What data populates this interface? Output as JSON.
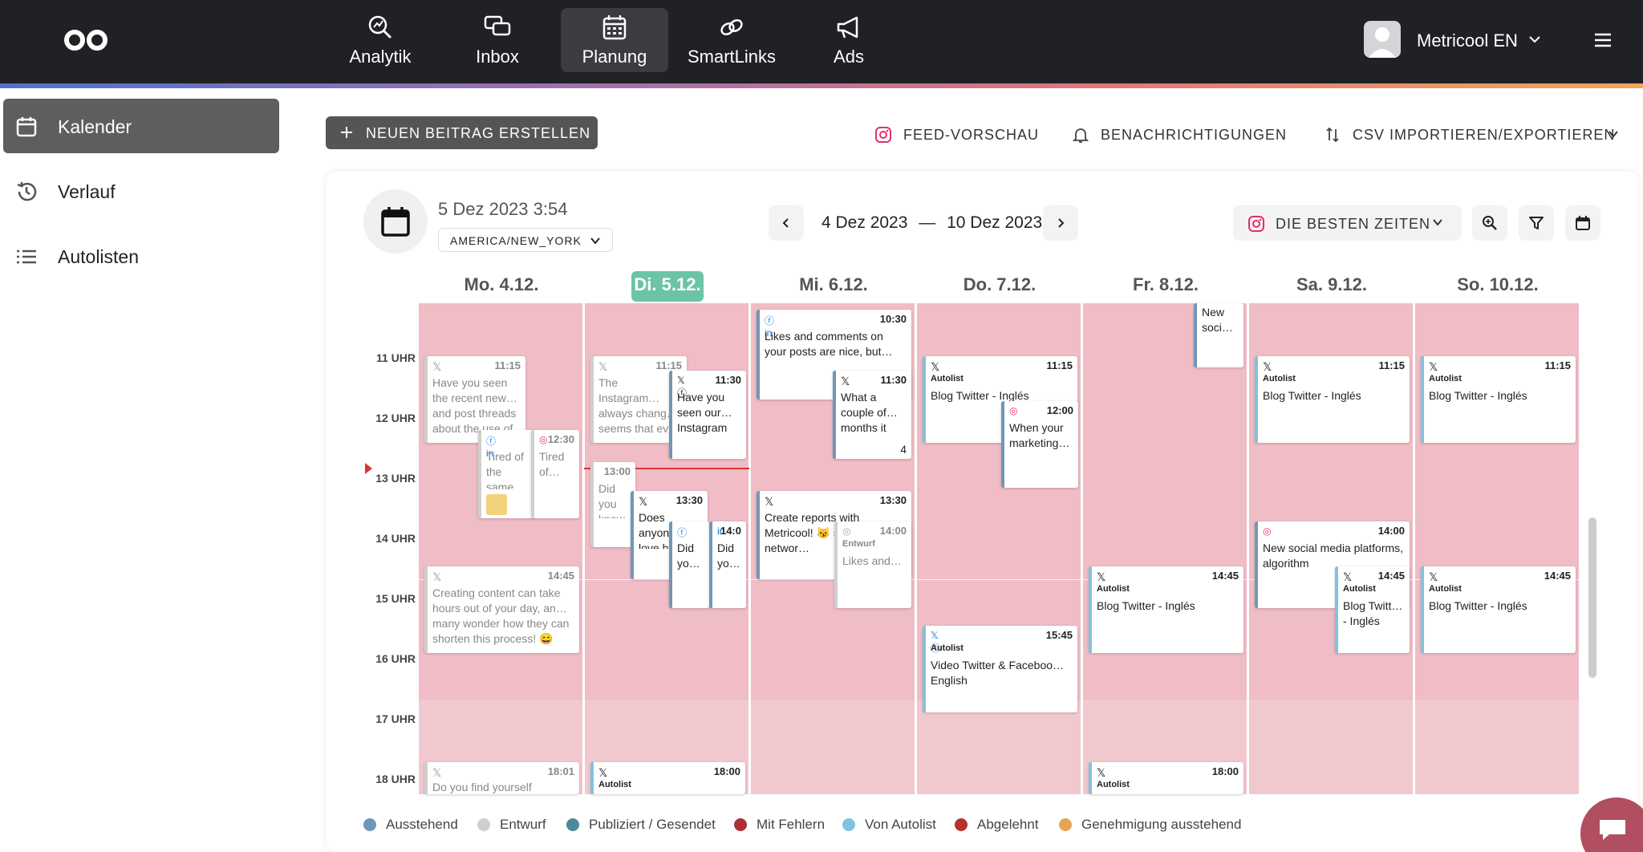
{
  "nav": {
    "items": [
      {
        "label": "Analytik",
        "icon": "analytics-icon"
      },
      {
        "label": "Inbox",
        "icon": "inbox-icon"
      },
      {
        "label": "Planung",
        "icon": "calendar-icon",
        "active": true
      },
      {
        "label": "SmartLinks",
        "icon": "link-icon"
      },
      {
        "label": "Ads",
        "icon": "megaphone-icon"
      }
    ],
    "account": "Metricool EN"
  },
  "sidebar": {
    "items": [
      {
        "label": "Kalender",
        "icon": "calendar-icon",
        "active": true
      },
      {
        "label": "Verlauf",
        "icon": "history-icon"
      },
      {
        "label": "Autolisten",
        "icon": "list-icon"
      }
    ]
  },
  "toolbar": {
    "new_post": "NEUEN BEITRAG ERSTELLEN",
    "feed_preview": "FEED-VORSCHAU",
    "notifications": "BENACHRICHTIGUNGEN",
    "csv": "CSV IMPORTIEREN/EXPORTIEREN"
  },
  "calendar": {
    "datetime": "5 Dez 2023 3:54",
    "timezone": "AMERICA/NEW_YORK",
    "range_start": "4 Dez 2023",
    "range_sep": "—",
    "range_end": "10 Dez 2023",
    "best_times": "DIE BESTEN ZEITEN",
    "days": [
      "Mo. 4.12.",
      "Di. 5.12.",
      "Mi. 6.12.",
      "Do. 7.12.",
      "Fr. 8.12.",
      "Sa. 9.12.",
      "So. 10.12."
    ],
    "today_index": 1,
    "hours": [
      "11 UHR",
      "12 UHR",
      "13 UHR",
      "14 UHR",
      "15 UHR",
      "16 UHR",
      "17 UHR",
      "18 UHR"
    ]
  },
  "posts": {
    "mo_1115": {
      "time": "11:15",
      "text": "Have you seen the recent new… and post threads about the use of"
    },
    "mo_1230a": {
      "text": "Tired of the same…"
    },
    "mo_1230b": {
      "time": "12:30",
      "text": "Tired of…"
    },
    "mo_1445": {
      "time": "14:45",
      "text": "Creating content can take hours out of your day, an… many wonder how they can shorten this process! 😄"
    },
    "mo_1801": {
      "time": "18:01",
      "text": "Do you find yourself"
    },
    "di_1115": {
      "time": "11:15",
      "text": "The Instagram… always chang… seems that ev… trying to keep"
    },
    "di_1130": {
      "time": "11:30",
      "text": "Have you seen our… Instagram"
    },
    "di_1300": {
      "time": "13:00",
      "text": "Did you know"
    },
    "di_1330": {
      "time": "13:30",
      "text": "Does anyon… love h…"
    },
    "di_1400a": {
      "text": "Did yo… know"
    },
    "di_1400b": {
      "time": "14:0",
      "text": "Did yo…"
    },
    "di_1800": {
      "time": "18:00",
      "autolist": "Autolist"
    },
    "mi_1030": {
      "time": "10:30",
      "text": "Likes and comments on your posts are nice, but… how do you know if your"
    },
    "mi_1130": {
      "time": "11:30",
      "text": "What a couple of… months it",
      "count": "4"
    },
    "mi_1330": {
      "time": "13:30",
      "text": "Create reports with Metricool! 😼 social networ…"
    },
    "mi_1400": {
      "time": "14:00",
      "draft": "Entwurf",
      "text": "Likes and… comments"
    },
    "do_1115": {
      "time": "11:15",
      "autolist": "Autolist",
      "text": "Blog Twitter - Inglés"
    },
    "do_1200": {
      "time": "12:00",
      "text": "When your marketing…"
    },
    "do_1545": {
      "time": "15:45",
      "autolist": "Autolist",
      "text": "Video Twitter & Faceboo… English"
    },
    "fr_top": {
      "text": "New soci…"
    },
    "fr_1445": {
      "time": "14:45",
      "autolist": "Autolist",
      "text": "Blog Twitter - Inglés"
    },
    "fr_1800": {
      "time": "18:00",
      "autolist": "Autolist"
    },
    "sa_1115": {
      "time": "11:15",
      "autolist": "Autolist",
      "text": "Blog Twitter - Inglés"
    },
    "sa_1400": {
      "time": "14:00",
      "text": "New social media platforms, algorithm"
    },
    "sa_1445": {
      "time": "14:45",
      "autolist": "Autolist",
      "text": "Blog Twitt… - Inglés"
    },
    "so_1115": {
      "time": "11:15",
      "autolist": "Autolist",
      "text": "Blog Twitter - Inglés"
    },
    "so_1445": {
      "time": "14:45",
      "autolist": "Autolist",
      "text": "Blog Twitter - Inglés"
    }
  },
  "legend": [
    {
      "label": "Ausstehend",
      "color": "#6f97b8"
    },
    {
      "label": "Entwurf",
      "color": "#cfcfcf"
    },
    {
      "label": "Publiziert / Gesendet",
      "color": "#4d8a99"
    },
    {
      "label": "Mit Fehlern",
      "color": "#b03038"
    },
    {
      "label": "Von Autolist",
      "color": "#7fc3e0"
    },
    {
      "label": "Abgelehnt",
      "color": "#b83030"
    },
    {
      "label": "Genehmigung ausstehend",
      "color": "#e6a555"
    }
  ]
}
